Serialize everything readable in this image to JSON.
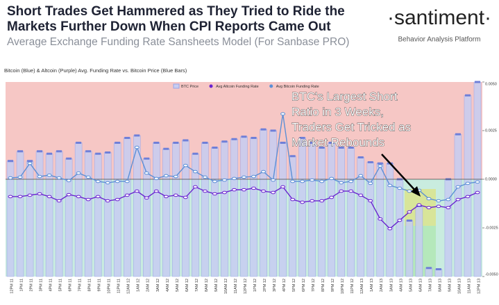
{
  "header": {
    "title_lines": [
      "Short Trades Get Hammered as They Tried to Ride the",
      "Markets Further Down When CPI Reports Came Out"
    ],
    "subtitle": "Average Exchange Funding Rate Sansheets Model (For Sanbase PRO)",
    "logo": "·santiment·",
    "tagline": "Behavior Analysis Platform"
  },
  "chart_data": {
    "type": "bar_line",
    "subtitle": "Bitcoin (Blue) & Altcoin (Purple) Avg. Funding Rate vs. Bitcoin Price (Blue Bars)",
    "annotation": [
      "BTC's Largest Short",
      "Ratio in 3 Weeks,",
      "Traders Get Tricked as",
      "Market Rebounds"
    ],
    "categories": [
      "12PM 11",
      "1PM 11",
      "2PM 11",
      "3PM 11",
      "4PM 11",
      "5PM 11",
      "6PM 11",
      "7PM 11",
      "8PM 11",
      "9PM 11",
      "10PM 11",
      "11PM 11",
      "12AM 12",
      "1AM 12",
      "2AM 12",
      "3AM 12",
      "4AM 12",
      "5AM 12",
      "6AM 12",
      "7AM 12",
      "8AM 12",
      "9AM 12",
      "10AM 12",
      "11AM 12",
      "12PM 12",
      "1PM 12",
      "2PM 12",
      "3PM 12",
      "4PM 12",
      "5PM 12",
      "6PM 12",
      "7PM 12",
      "8PM 12",
      "9PM 12",
      "10PM 12",
      "11PM 12",
      "12AM 13",
      "1AM 13",
      "2AM 13",
      "3AM 13",
      "4AM 13",
      "5AM 13",
      "6AM 13",
      "7AM 13",
      "8AM 13",
      "9AM 13",
      "10AM 13",
      "11AM 13",
      "12PM 13"
    ],
    "ylim": [
      -0.005,
      0.005
    ],
    "yticks": [
      {
        "value": 0.005,
        "label": "0.0050"
      },
      {
        "value": 0.0025,
        "label": "0.0025"
      },
      {
        "value": 0,
        "label": "0.0000"
      },
      {
        "value": -0.0025,
        "label": "-0.0025"
      },
      {
        "value": -0.005,
        "label": "-0.0050"
      }
    ],
    "y2lim": [
      16800,
      18400
    ],
    "series": [
      {
        "name": "BTC Price",
        "kind": "bar",
        "axis": "y2",
        "color": "#c7cdf2",
        "values": [
          17750,
          17830,
          17750,
          17830,
          17810,
          17830,
          17770,
          17900,
          17830,
          17810,
          17820,
          17900,
          17940,
          17960,
          17770,
          17900,
          17850,
          17900,
          17920,
          17810,
          17900,
          17860,
          17910,
          17930,
          17950,
          17940,
          18010,
          18000,
          17900,
          17790,
          17940,
          17900,
          17860,
          17900,
          17860,
          17860,
          17780,
          17740,
          17730,
          17730,
          17600,
          17260,
          17380,
          16870,
          16860,
          17600,
          17970,
          18290,
          18400
        ]
      },
      {
        "name": "Avg Altcoin Funding Rate",
        "kind": "line",
        "color": "#6a22d0",
        "values": [
          -0.00089,
          -0.00089,
          -0.00082,
          -0.00075,
          -0.00089,
          -0.00111,
          -0.00079,
          -0.00089,
          -0.00104,
          -0.00089,
          -0.00111,
          -0.00104,
          -0.00082,
          -0.00061,
          -0.00096,
          -0.00061,
          -0.00089,
          -0.00082,
          -0.00093,
          -0.00039,
          -0.00061,
          -0.00075,
          -0.00068,
          -0.00054,
          -0.00054,
          -0.00046,
          -0.00061,
          -0.00068,
          -0.00039,
          -0.00104,
          -0.00118,
          -0.00111,
          -0.00111,
          -0.00093,
          -0.00061,
          -0.00061,
          -0.00082,
          -0.00111,
          -0.00204,
          -0.00254,
          -0.00211,
          -0.00168,
          -0.00132,
          -0.00146,
          -0.00139,
          -0.00146,
          -0.00104,
          -0.00089,
          -0.00068
        ]
      },
      {
        "name": "Avg Bitcoin Funding Rate",
        "kind": "line",
        "color": "#5b8fd6",
        "values": [
          7e-05,
          0.00011,
          0.00082,
          0.00014,
          0.00021,
          7e-05,
          -7e-05,
          0.00032,
          0.00011,
          -0.00011,
          -0.00018,
          -0.00011,
          -0.00011,
          0.00164,
          0.00032,
          4e-05,
          0.00018,
          0.00014,
          0.00071,
          0.00039,
          0.00011,
          -0.00011,
          -4e-05,
          4e-05,
          0.00011,
          0.00014,
          0.00039,
          -4e-05,
          0.00336,
          -0.00011,
          -0.00011,
          -4e-05,
          -0.00011,
          4e-05,
          -0.00018,
          -0.00011,
          0.00018,
          -0.00021,
          0.00068,
          -0.00032,
          -0.00046,
          -0.00061,
          -0.00057,
          -0.001,
          -0.00111,
          -0.00104,
          -0.00039,
          -0.00021,
          -0.00014
        ]
      }
    ]
  }
}
